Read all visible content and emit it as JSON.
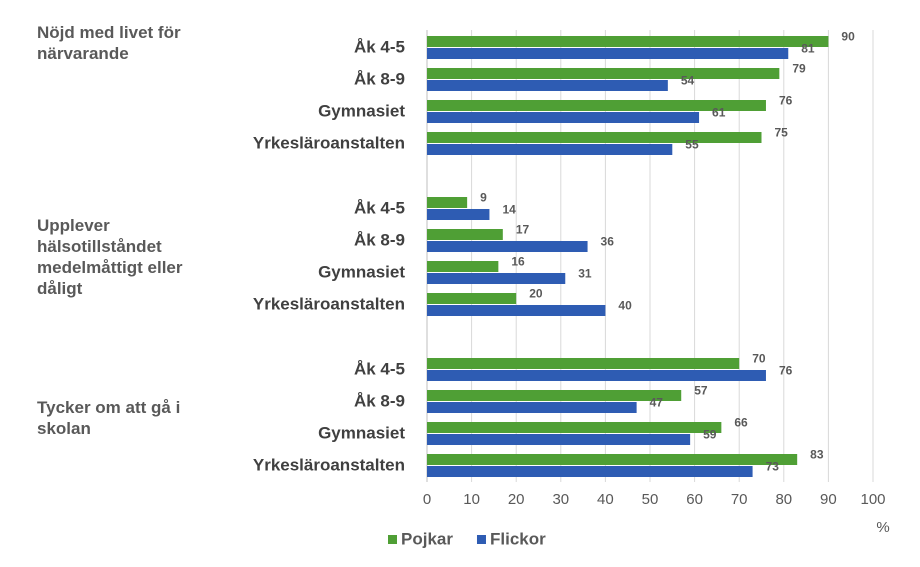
{
  "chart_data": {
    "type": "bar",
    "orientation": "horizontal",
    "groups": [
      {
        "name": "Nöjd med livet för närvarande",
        "categories": [
          "Åk 4-5",
          "Åk 8-9",
          "Gymnasiet",
          "Yrkesläroanstalten"
        ]
      },
      {
        "name": "Upplever hälsotillståndet medelmåttigt eller dåligt",
        "categories": [
          "Åk 4-5",
          "Åk 8-9",
          "Gymnasiet",
          "Yrkesläroanstalten"
        ]
      },
      {
        "name": "Tycker om att gå i skolan",
        "categories": [
          "Åk 4-5",
          "Åk 8-9",
          "Gymnasiet",
          "Yrkesläroanstalten"
        ]
      }
    ],
    "series": [
      {
        "name": "Pojkar",
        "color": "#4f9f35",
        "values": [
          90,
          79,
          76,
          75,
          9,
          17,
          16,
          20,
          70,
          57,
          66,
          83
        ]
      },
      {
        "name": "Flickor",
        "color": "#2e5cb3",
        "values": [
          81,
          54,
          61,
          55,
          14,
          36,
          31,
          40,
          76,
          47,
          59,
          73
        ]
      }
    ],
    "xlim": [
      0,
      100
    ],
    "xticks": [
      0,
      10,
      20,
      30,
      40,
      50,
      60,
      70,
      80,
      90,
      100
    ],
    "xlabel": "%",
    "grid": true,
    "legend": "bottom"
  }
}
